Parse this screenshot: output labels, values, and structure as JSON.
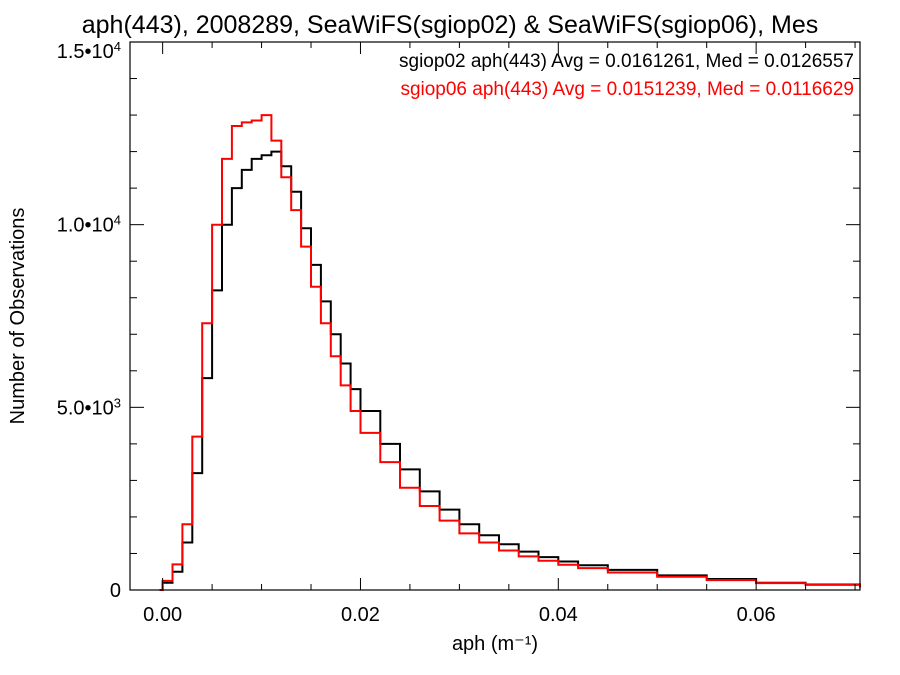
{
  "chart_data": {
    "type": "line",
    "title": "aph(443), 2008289, SeaWiFS(sgiop02) & SeaWiFS(sgiop06), Mes",
    "xlabel": "aph (m⁻¹)",
    "ylabel": "Number of Observations",
    "xlim": [
      -0.0033,
      0.0705
    ],
    "ylim": [
      0,
      15000
    ],
    "xticks": [
      {
        "value": 0.0,
        "label": "0.00"
      },
      {
        "value": 0.02,
        "label": "0.02"
      },
      {
        "value": 0.04,
        "label": "0.04"
      },
      {
        "value": 0.06,
        "label": "0.06"
      }
    ],
    "yticks": [
      {
        "value": 0,
        "mant": "0",
        "exp": ""
      },
      {
        "value": 5000,
        "mant": "5.0•10",
        "exp": "3"
      },
      {
        "value": 10000,
        "mant": "1.0•10",
        "exp": "4"
      },
      {
        "value": 15000,
        "mant": "1.5•10",
        "exp": "4"
      }
    ],
    "grid": false,
    "legend": "top-right",
    "series": [
      {
        "name": "sgiop02 aph(443) Avg = 0.0161261, Med = 0.0126557",
        "color": "#000000",
        "x": [
          -0.0003,
          0.0,
          0.001,
          0.002,
          0.003,
          0.004,
          0.005,
          0.006,
          0.007,
          0.008,
          0.009,
          0.01,
          0.011,
          0.012,
          0.013,
          0.014,
          0.015,
          0.016,
          0.017,
          0.018,
          0.019,
          0.02,
          0.022,
          0.024,
          0.026,
          0.028,
          0.03,
          0.032,
          0.034,
          0.036,
          0.038,
          0.04,
          0.042,
          0.045,
          0.05,
          0.055,
          0.06,
          0.065,
          0.0705
        ],
        "y": [
          0,
          200,
          500,
          1300,
          3200,
          5800,
          8200,
          10000,
          11000,
          11500,
          11800,
          11900,
          12000,
          11600,
          10900,
          9900,
          8900,
          7900,
          7000,
          6200,
          5500,
          4900,
          4000,
          3300,
          2700,
          2200,
          1800,
          1500,
          1250,
          1050,
          900,
          780,
          680,
          550,
          400,
          300,
          200,
          150,
          80
        ]
      },
      {
        "name": "sgiop06 aph(443) Avg = 0.0151239, Med = 0.0116629",
        "color": "#ff0000",
        "x": [
          -0.0003,
          0.0,
          0.001,
          0.002,
          0.003,
          0.004,
          0.005,
          0.006,
          0.007,
          0.008,
          0.009,
          0.01,
          0.011,
          0.012,
          0.013,
          0.014,
          0.015,
          0.016,
          0.017,
          0.018,
          0.019,
          0.02,
          0.022,
          0.024,
          0.026,
          0.028,
          0.03,
          0.032,
          0.034,
          0.036,
          0.038,
          0.04,
          0.042,
          0.045,
          0.05,
          0.055,
          0.06,
          0.065,
          0.0705
        ],
        "y": [
          0,
          250,
          700,
          1800,
          4200,
          7300,
          10000,
          11800,
          12700,
          12800,
          12850,
          13000,
          12300,
          11300,
          10400,
          9400,
          8300,
          7300,
          6400,
          5600,
          4900,
          4300,
          3500,
          2800,
          2300,
          1900,
          1550,
          1300,
          1080,
          920,
          800,
          690,
          600,
          480,
          360,
          270,
          190,
          140,
          70
        ]
      }
    ]
  }
}
